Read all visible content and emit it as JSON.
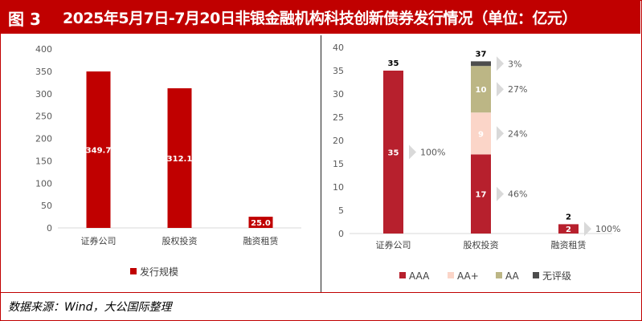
{
  "figure": {
    "label": "图 3",
    "title": "2025年5月7日-7月20日非银金融机构科技创新债券发行情况（单位：亿元）",
    "source": "数据来源：Wind，大公国际整理"
  },
  "colors": {
    "header_bg": "#c00000",
    "left_bar": "#c00000",
    "AAA": "#b7202d",
    "AA+": "#fbd5c8",
    "AA": "#bcb685",
    "无评级": "#4d4d4d",
    "arrow": "#d9d9d9"
  },
  "chart_data": [
    {
      "type": "bar",
      "categories": [
        "证券公司",
        "股权投资",
        "融资租赁"
      ],
      "series": [
        {
          "name": "发行规模",
          "values": [
            349.7,
            312.1,
            25.0
          ]
        }
      ],
      "data_labels": [
        "349.7",
        "312.1",
        "25.0"
      ],
      "ylim": [
        0,
        400
      ],
      "yticks": [
        0,
        50,
        100,
        150,
        200,
        250,
        300,
        350,
        400
      ],
      "legend": "bottom"
    },
    {
      "type": "bar",
      "stacked": true,
      "categories": [
        "证券公司",
        "股权投资",
        "融资租赁"
      ],
      "series": [
        {
          "name": "AAA",
          "values": [
            35,
            17,
            2
          ]
        },
        {
          "name": "AA+",
          "values": [
            0,
            9,
            0
          ]
        },
        {
          "name": "AA",
          "values": [
            0,
            10,
            0
          ]
        },
        {
          "name": "无评级",
          "values": [
            0,
            1,
            0
          ]
        }
      ],
      "totals": [
        35,
        37,
        2
      ],
      "ylim": [
        0,
        40
      ],
      "yticks": [
        0,
        5,
        10,
        15,
        20,
        25,
        30,
        35,
        40
      ],
      "share_annotations": [
        {
          "category": "证券公司",
          "series": "AAA",
          "text": "100%"
        },
        {
          "category": "股权投资",
          "series": "无评级",
          "text": "3%"
        },
        {
          "category": "股权投资",
          "series": "AA",
          "text": "27%"
        },
        {
          "category": "股权投资",
          "series": "AA+",
          "text": "24%"
        },
        {
          "category": "股权投资",
          "series": "AAA",
          "text": "46%"
        },
        {
          "category": "融资租赁",
          "series": "AAA",
          "text": "100%"
        }
      ],
      "legend": "bottom"
    }
  ]
}
